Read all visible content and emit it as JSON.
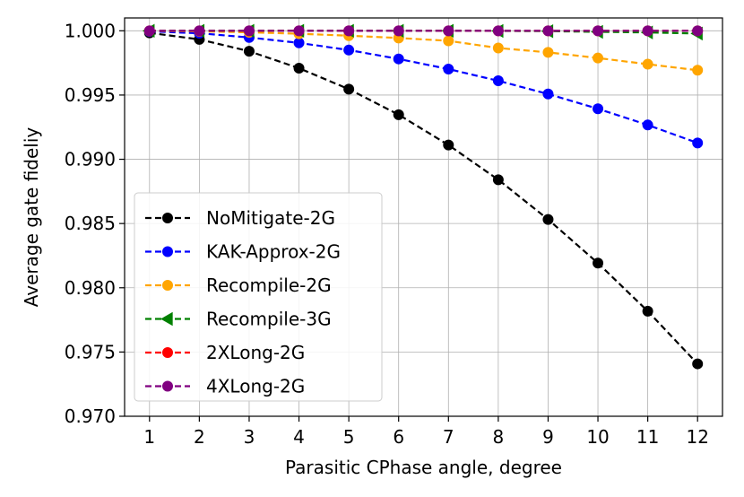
{
  "chart_data": {
    "type": "line",
    "title": "",
    "xlabel": "Parasitic CPhase angle, degree",
    "ylabel": "Average gate fideliy",
    "x": [
      1,
      2,
      3,
      4,
      5,
      6,
      7,
      8,
      9,
      10,
      11,
      12
    ],
    "x_tick_labels": [
      "1",
      "2",
      "3",
      "4",
      "5",
      "6",
      "7",
      "8",
      "9",
      "10",
      "11",
      "12"
    ],
    "xlim": [
      0.5,
      12.5
    ],
    "ylim": [
      0.97,
      1.001
    ],
    "y_ticks": [
      0.97,
      0.975,
      0.98,
      0.985,
      0.99,
      0.995,
      1.0
    ],
    "y_tick_labels": [
      "0.970",
      "0.975",
      "0.980",
      "0.985",
      "0.990",
      "0.995",
      "1.000"
    ],
    "grid": true,
    "legend_position": "lower-left",
    "series": [
      {
        "name": "NoMitigate-2G",
        "color": "#000000",
        "marker": "circle",
        "values": [
          0.99984,
          0.99933,
          0.99841,
          0.99709,
          0.99546,
          0.99347,
          0.99111,
          0.98841,
          0.98532,
          0.98192,
          0.97818,
          0.97408
        ]
      },
      {
        "name": "KAK-Approx-2G",
        "color": "#0000ff",
        "marker": "circle",
        "values": [
          0.99995,
          0.99981,
          0.99948,
          0.99906,
          0.9985,
          0.99781,
          0.99702,
          0.99611,
          0.99508,
          0.99393,
          0.99267,
          0.99127
        ]
      },
      {
        "name": "Recompile-2G",
        "color": "#ffa500",
        "marker": "circle",
        "values": [
          0.99999,
          0.99996,
          0.99988,
          0.99977,
          0.99962,
          0.99944,
          0.99922,
          0.99866,
          0.99832,
          0.99788,
          0.9974,
          0.99693
        ]
      },
      {
        "name": "Recompile-3G",
        "color": "#008000",
        "marker": "triangle-left",
        "values": [
          1.0,
          1.0,
          1.0,
          1.0,
          1.0,
          1.0,
          1.0,
          0.99999,
          0.99997,
          0.99992,
          0.99987,
          0.99979
        ]
      },
      {
        "name": "2XLong-2G",
        "color": "#ff0000",
        "marker": "circle",
        "values": [
          1.0,
          1.0,
          1.0,
          1.0,
          1.0,
          1.0,
          1.0,
          1.0,
          1.0,
          1.0,
          1.0,
          1.0
        ]
      },
      {
        "name": "4XLong-2G",
        "color": "#800080",
        "marker": "circle",
        "values": [
          1.0,
          1.0,
          1.0,
          1.0,
          1.0,
          1.0,
          1.0,
          1.0,
          1.0,
          1.0,
          1.0,
          1.0
        ]
      }
    ]
  }
}
